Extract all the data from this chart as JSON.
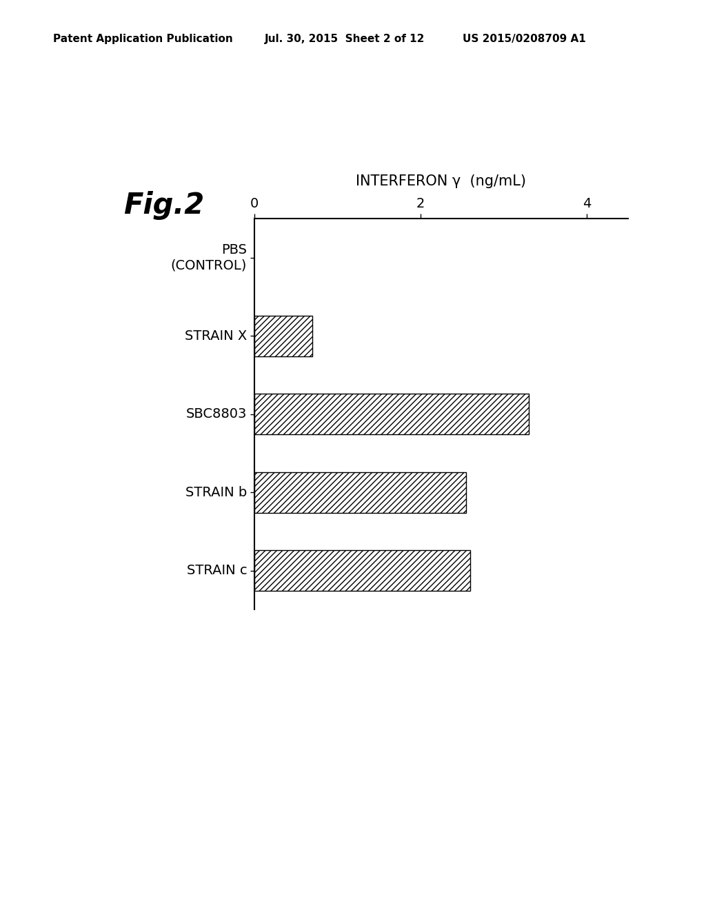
{
  "fig_label": "Fig.2",
  "xlabel": "INTERFERON γ  (ng/mL)",
  "categories": [
    "PBS\n(CONTROL)",
    "STRAIN X",
    "SBC8803",
    "STRAIN b",
    "STRAIN c"
  ],
  "values": [
    0.0,
    0.7,
    3.3,
    2.55,
    2.6
  ],
  "xlim": [
    0,
    4.5
  ],
  "xticks": [
    0,
    2,
    4
  ],
  "bar_height": 0.52,
  "hatch": "////",
  "bar_facecolor": "white",
  "bar_edgecolor": "black",
  "background_color": "white",
  "header_text": "Patent Application Publication",
  "header_date": "Jul. 30, 2015  Sheet 2 of 12",
  "header_patent": "US 2015/0208709 A1",
  "fig_label_fontsize": 30,
  "xlabel_fontsize": 15,
  "tick_fontsize": 14,
  "category_fontsize": 14,
  "header_fontsize": 11
}
